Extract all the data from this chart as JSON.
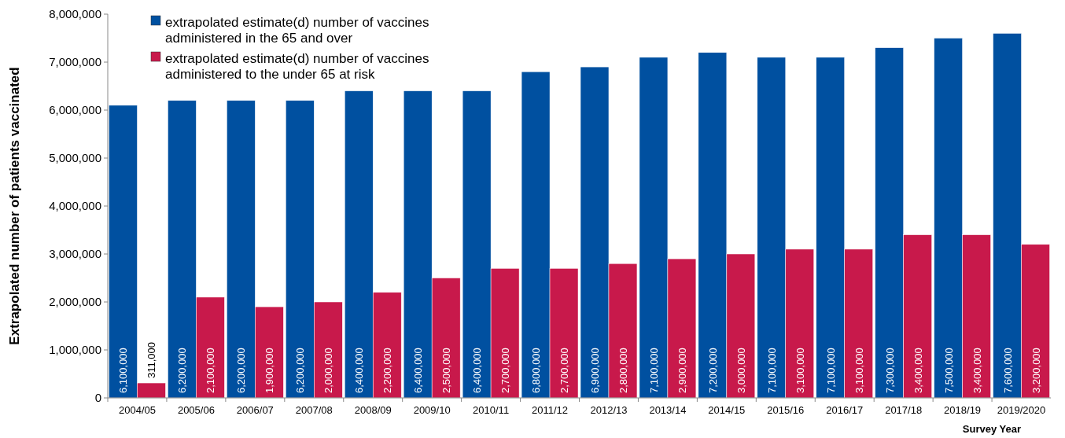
{
  "chart_data": {
    "type": "bar",
    "ylabel": "Extrapolated number of patients vaccinated",
    "xlabel": "Survey Year",
    "categories": [
      "2004/05",
      "2005/06",
      "2006/07",
      "2007/08",
      "2008/09",
      "2009/10",
      "2010/11",
      "2011/12",
      "2012/13",
      "2013/14",
      "2014/15",
      "2015/16",
      "2016/17",
      "2017/18",
      "2018/19",
      "2019/2020"
    ],
    "series": [
      {
        "name": "extrapolated estimate(d) number of vaccines administered in the 65 and over",
        "color": "#0050a0",
        "values": [
          6100000,
          6200000,
          6200000,
          6200000,
          6400000,
          6400000,
          6400000,
          6800000,
          6900000,
          7100000,
          7200000,
          7100000,
          7100000,
          7300000,
          7500000,
          7600000
        ],
        "value_labels": [
          "6,100,000",
          "6,200,000",
          "6,200,000",
          "6,200,000",
          "6,400,000",
          "6,400,000",
          "6,400,000",
          "6,800,000",
          "6,900,000",
          "7,100,000",
          "7,200,000",
          "7,100,000",
          "7,100,000",
          "7,300,000",
          "7,500,000",
          "7,600,000"
        ]
      },
      {
        "name": "extrapolated estimate(d) number of vaccines administered to the under 65 at risk",
        "color": "#c8194b",
        "values": [
          311000,
          2100000,
          1900000,
          2000000,
          2200000,
          2500000,
          2700000,
          2700000,
          2800000,
          2900000,
          3000000,
          3100000,
          3100000,
          3400000,
          3400000,
          3200000
        ],
        "value_labels": [
          "311,000",
          "2,100,000",
          "1,900,000",
          "2,000,000",
          "2,200,000",
          "2,500,000",
          "2,700,000",
          "2,700,000",
          "2,800,000",
          "2,900,000",
          "3,000,000",
          "3,100,000",
          "3,100,000",
          "3,400,000",
          "3,400,000",
          "3,200,000"
        ]
      }
    ],
    "ylim": [
      0,
      8000000
    ],
    "yticks": [
      {
        "value": 0,
        "label": "0"
      },
      {
        "value": 1000000,
        "label": "1,000,000"
      },
      {
        "value": 2000000,
        "label": "2,000,000"
      },
      {
        "value": 3000000,
        "label": "3,000,000"
      },
      {
        "value": 4000000,
        "label": "4,000,000"
      },
      {
        "value": 5000000,
        "label": "5,000,000"
      },
      {
        "value": 6000000,
        "label": "6,000,000"
      },
      {
        "value": 7000000,
        "label": "7,000,000"
      },
      {
        "value": 8000000,
        "label": "8,000,000"
      }
    ],
    "legend": "top left",
    "grid": false
  }
}
